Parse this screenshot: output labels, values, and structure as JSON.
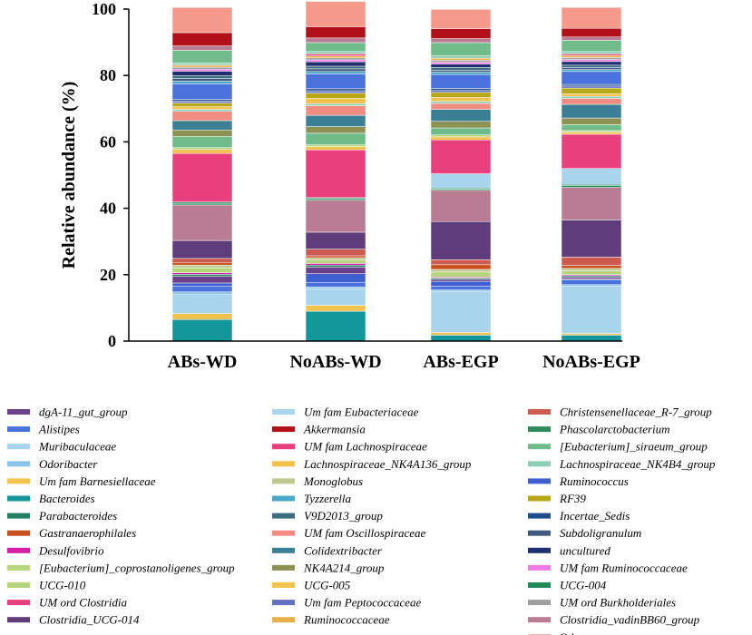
{
  "chart_data": {
    "type": "bar",
    "stacked": true,
    "title": "",
    "xlabel": "",
    "ylabel": "Relative abundance (%)",
    "ylim": [
      0,
      100
    ],
    "yticks": [
      0,
      20,
      40,
      60,
      80,
      100
    ],
    "grid": false,
    "legend_position": "bottom",
    "categories": [
      "ABs-WD",
      "NoABs-WD",
      "ABs-EGP",
      "NoABs-EGP"
    ],
    "series": [
      {
        "name": "Bacteroides",
        "color": "#12969a",
        "values": [
          6.5,
          9.0,
          1.8,
          1.8
        ]
      },
      {
        "name": "Um fam Barnesiellaceae",
        "color": "#f2c14e",
        "values": [
          1.8,
          1.8,
          0.8,
          0.5
        ]
      },
      {
        "name": "Muribaculaceae",
        "color": "#a8d4ec",
        "values": [
          5.7,
          4.9,
          12.4,
          14.3
        ]
      },
      {
        "name": "Odoribacter",
        "color": "#8cc4ea",
        "values": [
          0.8,
          0.6,
          0.4,
          0.4
        ]
      },
      {
        "name": "Alistipes",
        "color": "#4a72dc",
        "values": [
          1.7,
          1.4,
          1.1,
          1.4
        ]
      },
      {
        "name": "Ruminococcus",
        "color": "#3f5fd0",
        "values": [
          1.0,
          2.6,
          1.5,
          0.3
        ]
      },
      {
        "name": "dgA-11_gut_group",
        "color": "#6a3f8c",
        "values": [
          2.0,
          2.0,
          0.6,
          0.6
        ]
      },
      {
        "name": "Parabacteroides",
        "color": "#1e8060",
        "values": [
          0.6,
          0.6,
          0.4,
          0.4
        ]
      },
      {
        "name": "Desulfovibrio",
        "color": "#d41fa8",
        "values": [
          0.5,
          0.5,
          0.3,
          0.3
        ]
      },
      {
        "name": "[Eubacterium]_coprostanoligenes_group",
        "color": "#b7d57a",
        "values": [
          1.5,
          1.0,
          1.5,
          1.2
        ]
      },
      {
        "name": "Monoglobus",
        "color": "#bfc98f",
        "values": [
          0.8,
          0.7,
          0.8,
          0.7
        ]
      },
      {
        "name": "Gastranaerophilales",
        "color": "#c8501e",
        "values": [
          0.8,
          0.6,
          1.4,
          0.9
        ]
      },
      {
        "name": "Christensenellaceae_R-7_group",
        "color": "#cc5a50",
        "values": [
          1.2,
          2.0,
          1.5,
          2.5
        ]
      },
      {
        "name": "Clostridia_UCG-014",
        "color": "#5e3d7a",
        "values": [
          5.4,
          5.1,
          11.5,
          11.2
        ]
      },
      {
        "name": "Clostridia_vadinBB60_group",
        "color": "#ba7c92",
        "values": [
          10.7,
          9.6,
          9.4,
          9.8
        ]
      },
      {
        "name": "UCG-004",
        "color": "#1e8a5a",
        "values": [
          0.5,
          0.5,
          0.4,
          0.6
        ]
      },
      {
        "name": "Phascolarctobacterium",
        "color": "#2e8c5c",
        "values": [
          0.4,
          0.3,
          0.3,
          0.3
        ]
      },
      {
        "name": "Um fam Eubacteriaceae",
        "color": "#a8d4ec",
        "values": [
          0.0,
          0.0,
          4.3,
          4.8
        ]
      },
      {
        "name": "UM fam Lachnospiraceae",
        "color": "#e8407c",
        "values": [
          14.6,
          14.4,
          10.2,
          10.3
        ]
      },
      {
        "name": "Lachnospiraceae_NK4A136_group",
        "color": "#f2c14e",
        "values": [
          1.2,
          1.0,
          0.9,
          0.6
        ]
      },
      {
        "name": "UCG-010",
        "color": "#b7d57a",
        "values": [
          0.6,
          0.5,
          0.6,
          0.5
        ]
      },
      {
        "name": "[Eubacterium]_siraeum_group",
        "color": "#6fbb8a",
        "values": [
          3.3,
          3.5,
          2.1,
          1.8
        ]
      },
      {
        "name": "NK4A214_group",
        "color": "#8c9254",
        "values": [
          2.0,
          2.0,
          2.0,
          2.0
        ]
      },
      {
        "name": "Colidextribacter",
        "color": "#3b7f94",
        "values": [
          2.8,
          3.4,
          3.6,
          4.1
        ]
      },
      {
        "name": "UM fam Oscillospiraceae",
        "color": "#f28c80",
        "values": [
          2.8,
          2.9,
          1.8,
          1.8
        ]
      },
      {
        "name": "Lachnospiraceae_NK4B4_group",
        "color": "#8ccfb4",
        "values": [
          0.6,
          0.6,
          0.6,
          0.6
        ]
      },
      {
        "name": "UCG-005",
        "color": "#f2c14e",
        "values": [
          0.8,
          1.6,
          1.2,
          0.8
        ]
      },
      {
        "name": "RF39",
        "color": "#b8a818",
        "values": [
          1.1,
          1.6,
          1.5,
          1.7
        ]
      },
      {
        "name": "Um fam Peptococcaceae",
        "color": "#6470c0",
        "values": [
          0.6,
          0.7,
          0.6,
          0.6
        ]
      },
      {
        "name": "Incertae_Sedis",
        "color": "#1f4d8c",
        "values": [
          0.5,
          0.6,
          0.6,
          0.5
        ]
      },
      {
        "name": "Alistipes",
        "color": "#4a72dc",
        "values": [
          4.7,
          4.5,
          4.2,
          3.9
        ]
      },
      {
        "name": "Tyzzerella",
        "color": "#4aa8c8",
        "values": [
          0.8,
          0.7,
          0.7,
          0.6
        ]
      },
      {
        "name": "Subdoligranulum",
        "color": "#3f5a80",
        "values": [
          0.8,
          0.8,
          0.6,
          0.6
        ]
      },
      {
        "name": "V9D2013_group",
        "color": "#3d6d7e",
        "values": [
          0.8,
          0.8,
          0.8,
          0.7
        ]
      },
      {
        "name": "uncultured",
        "color": "#1f2f70",
        "values": [
          1.4,
          1.3,
          1.0,
          1.1
        ]
      },
      {
        "name": "Um fam Ruminococcaceae",
        "color": "#ee7ce6",
        "values": [
          0.6,
          0.6,
          0.6,
          0.6
        ]
      },
      {
        "name": "UM ord Burkholderiales",
        "color": "#a0a0a0",
        "values": [
          0.6,
          0.6,
          0.6,
          0.6
        ]
      },
      {
        "name": "Ruminococcaceae",
        "color": "#e8b048",
        "values": [
          0.6,
          0.6,
          0.6,
          0.6
        ]
      },
      {
        "name": "UM ord Clostridia",
        "color": "#e8407c",
        "values": [
          0.0,
          0.6,
          0.0,
          0.5
        ]
      },
      {
        "name": "Lachnospiraceae_NK4B4_group",
        "color": "#8ccfb4",
        "values": [
          0.7,
          0.7,
          0.7,
          0.7
        ]
      },
      {
        "name": "[Eubacterium]_siraeum_group",
        "color": "#6fbb8a",
        "values": [
          3.8,
          2.7,
          4.0,
          3.4
        ]
      },
      {
        "name": "Clostridia_vadinBB60_group",
        "color": "#ba7c92",
        "values": [
          1.3,
          1.4,
          1.2,
          1.0
        ]
      },
      {
        "name": "Akkermansia",
        "color": "#b01018",
        "values": [
          4.0,
          3.4,
          3.0,
          2.6
        ]
      },
      {
        "name": "Other",
        "color": "#f59a8a",
        "values": [
          7.6,
          7.6,
          5.8,
          6.3
        ]
      }
    ],
    "legend_columns": [
      [
        {
          "label": "dgA-11_gut_group",
          "color": "#6a3f8c"
        },
        {
          "label": "Alistipes",
          "color": "#4a72dc"
        },
        {
          "label": "Muribaculaceae",
          "color": "#a8d4ec"
        },
        {
          "label": "Odoribacter",
          "color": "#8cc4ea"
        },
        {
          "label": "Um fam Barnesiellaceae",
          "color": "#f2c14e"
        },
        {
          "label": "Bacteroides",
          "color": "#12969a"
        },
        {
          "label": "Parabacteroides",
          "color": "#1e8060"
        },
        {
          "label": "Gastranaerophilales",
          "color": "#c8501e"
        },
        {
          "label": "Desulfovibrio",
          "color": "#d41fa8"
        },
        {
          "label": "[Eubacterium]_coprostanoligenes_group",
          "color": "#b7d57a"
        },
        {
          "label": "UCG-010",
          "color": "#b7d57a"
        },
        {
          "label": "UM ord Clostridia",
          "color": "#e8407c"
        },
        {
          "label": "Clostridia_UCG-014",
          "color": "#5e3d7a"
        }
      ],
      [
        {
          "label": "Um fam Eubacteriaceae",
          "color": "#a8d4ec"
        },
        {
          "label": "Akkermansia",
          "color": "#b01018"
        },
        {
          "label": "UM fam Lachnospiraceae",
          "color": "#e8407c"
        },
        {
          "label": "Lachnospiraceae_NK4A136_group",
          "color": "#f2c14e"
        },
        {
          "label": "Monoglobus",
          "color": "#bfc98f"
        },
        {
          "label": "Tyzzerella",
          "color": "#4aa8c8"
        },
        {
          "label": "V9D2013_group",
          "color": "#3d6d7e"
        },
        {
          "label": "UM fam Oscillospiraceae",
          "color": "#f28c80"
        },
        {
          "label": "Colidextribacter",
          "color": "#3b7f94"
        },
        {
          "label": "NK4A214_group",
          "color": "#8c9254"
        },
        {
          "label": "UCG-005",
          "color": "#f2c14e"
        },
        {
          "label": "Um fam Peptococcaceae",
          "color": "#6470c0"
        },
        {
          "label": "Ruminococcaceae",
          "color": "#e8b048"
        }
      ],
      [
        {
          "label": "Christensenellaceae_R-7_group",
          "color": "#cc5a50"
        },
        {
          "label": "Phascolarctobacterium",
          "color": "#2e8c5c"
        },
        {
          "label": "[Eubacterium]_siraeum_group",
          "color": "#6fbb8a"
        },
        {
          "label": "Lachnospiraceae_NK4B4_group",
          "color": "#8ccfb4"
        },
        {
          "label": "Ruminococcus",
          "color": "#3f5fd0"
        },
        {
          "label": "RF39",
          "color": "#b8a818"
        },
        {
          "label": "Incertae_Sedis",
          "color": "#1f4d8c"
        },
        {
          "label": "Subdoligranulum",
          "color": "#3f5a80"
        },
        {
          "label": "uncultured",
          "color": "#1f2f70"
        },
        {
          "label": "UM fam Ruminococcaceae",
          "color": "#ee7ce6"
        },
        {
          "label": "UCG-004",
          "color": "#1e8a5a"
        },
        {
          "label": "UM ord Burkholderiales",
          "color": "#a0a0a0"
        },
        {
          "label": "Clostridia_vadinBB60_group",
          "color": "#ba7c92"
        },
        {
          "label": "Other",
          "color": "#f59a8a",
          "plain": true
        }
      ]
    ]
  }
}
